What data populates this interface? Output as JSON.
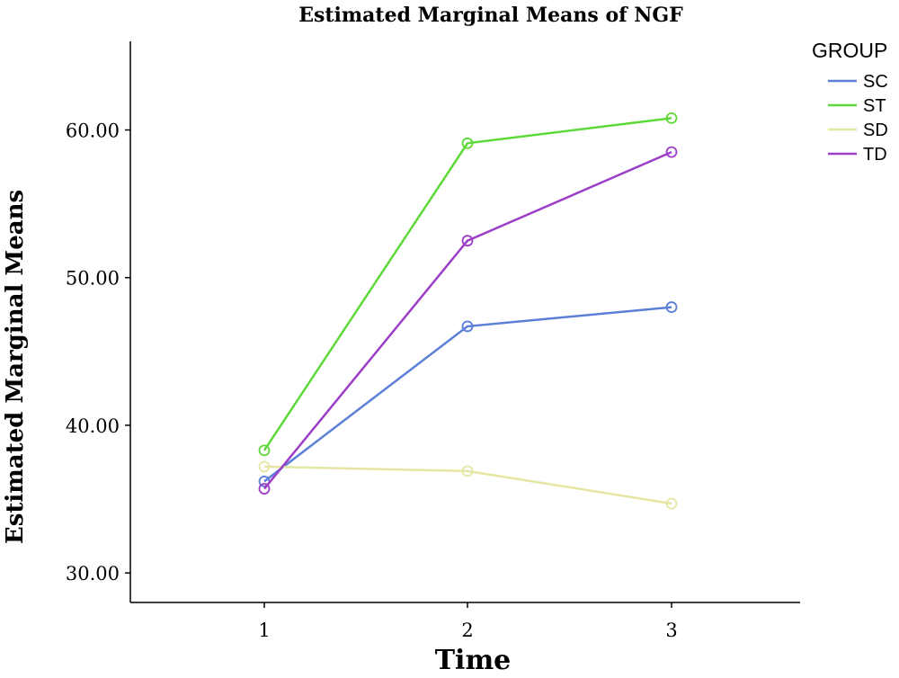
{
  "chart_data": {
    "type": "line",
    "title": "Estimated Marginal Means of NGF",
    "xlabel": "Time",
    "ylabel": "Estimated Marginal Means",
    "categories": [
      "1",
      "2",
      "3"
    ],
    "yticks": [
      "30.00",
      "40.00",
      "50.00",
      "60.00"
    ],
    "ytick_values": [
      30,
      40,
      50,
      60
    ],
    "ylim": [
      28,
      66
    ],
    "grid": false,
    "legend_title": "GROUP",
    "legend_position": "top-right",
    "series": [
      {
        "name": "SC",
        "color": "#5b7fd6",
        "values": [
          36.2,
          46.7,
          48.0
        ]
      },
      {
        "name": "ST",
        "color": "#5fd83a",
        "values": [
          38.3,
          59.1,
          60.8
        ]
      },
      {
        "name": "SD",
        "color": "#e5e6a4",
        "values": [
          37.2,
          36.9,
          34.7
        ]
      },
      {
        "name": "TD",
        "color": "#9d3ec9",
        "values": [
          35.7,
          52.5,
          58.5
        ]
      }
    ]
  }
}
